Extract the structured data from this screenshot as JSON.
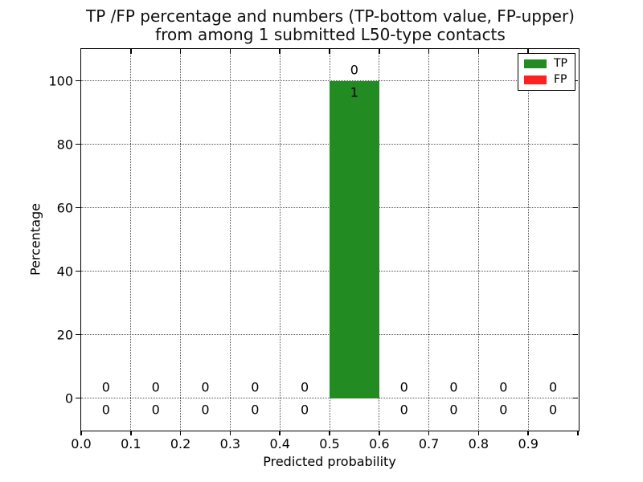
{
  "chart_data": {
    "type": "bar",
    "title_lines": [
      "TP /FP percentage and numbers (TP-bottom value, FP-upper)",
      "from among 1 submitted L50-type contacts"
    ],
    "xlabel": "Predicted probability",
    "ylabel": "Percentage",
    "xlim": [
      0.0,
      1.0
    ],
    "ylim": [
      -10,
      110
    ],
    "xticks": [
      0.0,
      0.1,
      0.2,
      0.3,
      0.4,
      0.5,
      0.6,
      0.7,
      0.8,
      0.9
    ],
    "xtick_labels": [
      "0.0",
      "0.1",
      "0.2",
      "0.3",
      "0.4",
      "0.5",
      "0.6",
      "0.7",
      "0.8",
      "0.9"
    ],
    "yticks": [
      0,
      20,
      40,
      60,
      80,
      100
    ],
    "ytick_labels": [
      "0",
      "20",
      "40",
      "60",
      "80",
      "100"
    ],
    "bin_edges": [
      0.0,
      0.1,
      0.2,
      0.3,
      0.4,
      0.5,
      0.6,
      0.7,
      0.8,
      0.9,
      1.0
    ],
    "bin_centers": [
      0.05,
      0.15,
      0.25,
      0.35,
      0.45,
      0.55,
      0.65,
      0.75,
      0.85,
      0.95
    ],
    "grid": "dotted",
    "legend_position": "upper right",
    "series": [
      {
        "name": "TP",
        "color": "#228b22",
        "label_row": "bottom",
        "percentages": [
          0,
          0,
          0,
          0,
          0,
          100,
          0,
          0,
          0,
          0
        ],
        "counts": [
          0,
          0,
          0,
          0,
          0,
          1,
          0,
          0,
          0,
          0
        ]
      },
      {
        "name": "FP",
        "color": "#ff2020",
        "label_row": "upper",
        "percentages": [
          0,
          0,
          0,
          0,
          0,
          0,
          0,
          0,
          0,
          0
        ],
        "counts": [
          0,
          0,
          0,
          0,
          0,
          0,
          0,
          0,
          0,
          0
        ]
      }
    ]
  }
}
